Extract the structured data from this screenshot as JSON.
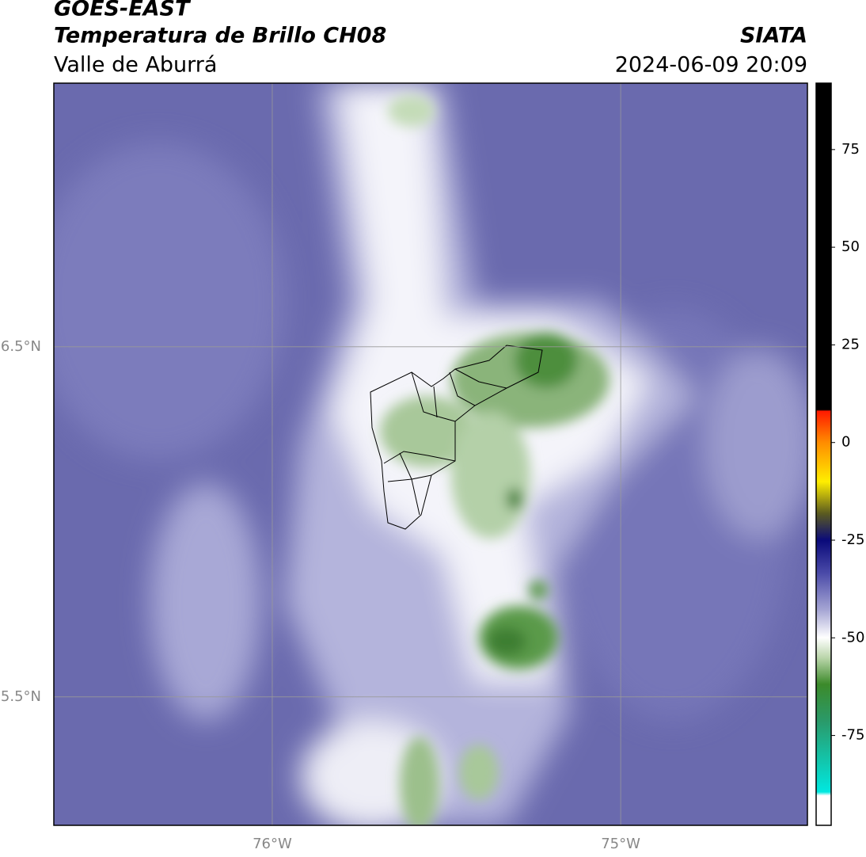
{
  "header": {
    "title": "GOES-EAST",
    "subtitle": "Temperatura de Brillo CH08",
    "region": "Valle de Aburrá",
    "source": "SIATA",
    "datetime": "2024-06-09 20:09"
  },
  "map": {
    "xlim": [
      -76.627,
      -74.464
    ],
    "ylim": [
      5.133,
      7.253
    ],
    "xticks": [
      {
        "value": -76,
        "label": "76°W"
      },
      {
        "value": -75,
        "label": "75°W"
      }
    ],
    "yticks": [
      {
        "value": 5.5,
        "label": "5.5°N"
      },
      {
        "value": 6.5,
        "label": "6.5°N"
      }
    ],
    "grid": true
  },
  "colorbar": {
    "lim": [
      -98,
      92
    ],
    "ticks": [
      75,
      50,
      25,
      0,
      -25,
      -50,
      -75
    ]
  }
}
